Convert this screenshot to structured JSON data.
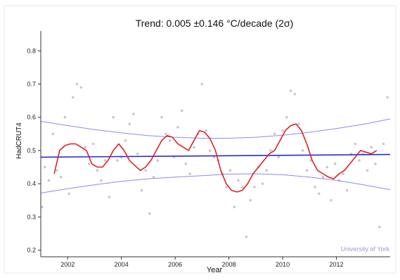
{
  "chart_data": {
    "type": "line",
    "title": "Trend: 0.005 ±0.146 °C/decade (2σ)",
    "xlabel": "Year",
    "ylabel": "HadCRUT4",
    "watermark": "University of York",
    "xlim": [
      2001.0,
      2014.0
    ],
    "ylim": [
      0.18,
      0.86
    ],
    "x_ticks": [
      2002,
      2004,
      2006,
      2008,
      2010,
      2012
    ],
    "y_ticks": [
      0.2,
      0.3,
      0.4,
      0.5,
      0.6,
      0.7,
      0.8
    ],
    "grid": false,
    "colors": {
      "smoothed": "#e02020",
      "trend": "#2a2ad6",
      "confidence": "#8a8af0",
      "monthly": "#c8c8c8",
      "axis": "#333333"
    },
    "series": [
      {
        "name": "",
        "style": "scatter",
        "x": [
          2001.05,
          2001.15,
          2001.3,
          2001.45,
          2001.6,
          2001.75,
          2001.9,
          2002.05,
          2002.2,
          2002.35,
          2002.5,
          2002.65,
          2002.8,
          2002.95,
          2003.1,
          2003.25,
          2003.4,
          2003.55,
          2003.7,
          2003.85,
          2004.0,
          2004.15,
          2004.3,
          2004.45,
          2004.6,
          2004.75,
          2004.9,
          2005.05,
          2005.2,
          2005.35,
          2005.5,
          2005.65,
          2005.8,
          2005.95,
          2006.1,
          2006.25,
          2006.4,
          2006.55,
          2006.7,
          2006.85,
          2007.0,
          2007.15,
          2007.3,
          2007.45,
          2007.6,
          2007.75,
          2007.9,
          2008.05,
          2008.2,
          2008.35,
          2008.5,
          2008.65,
          2008.8,
          2008.95,
          2009.1,
          2009.25,
          2009.4,
          2009.55,
          2009.7,
          2009.85,
          2010.0,
          2010.15,
          2010.3,
          2010.45,
          2010.6,
          2010.75,
          2010.9,
          2011.05,
          2011.2,
          2011.35,
          2011.5,
          2011.65,
          2011.8,
          2011.95,
          2012.1,
          2012.25,
          2012.4,
          2012.55,
          2012.7,
          2012.85,
          2013.0,
          2013.15,
          2013.3,
          2013.45,
          2013.6,
          2013.75,
          2013.9
        ],
        "values": [
          0.33,
          0.45,
          0.41,
          0.55,
          0.44,
          0.42,
          0.6,
          0.37,
          0.66,
          0.7,
          0.69,
          0.51,
          0.46,
          0.52,
          0.44,
          0.41,
          0.47,
          0.36,
          0.6,
          0.47,
          0.48,
          0.53,
          0.58,
          0.61,
          0.49,
          0.38,
          0.44,
          0.31,
          0.42,
          0.47,
          0.6,
          0.55,
          0.53,
          0.48,
          0.57,
          0.62,
          0.46,
          0.43,
          0.51,
          0.55,
          0.7,
          0.56,
          0.5,
          0.48,
          0.47,
          0.43,
          0.39,
          0.44,
          0.33,
          0.41,
          0.39,
          0.24,
          0.35,
          0.39,
          0.45,
          0.4,
          0.44,
          0.5,
          0.55,
          0.48,
          0.56,
          0.6,
          0.68,
          0.67,
          0.58,
          0.5,
          0.44,
          0.47,
          0.39,
          0.37,
          0.42,
          0.45,
          0.35,
          0.46,
          0.41,
          0.43,
          0.38,
          0.49,
          0.52,
          0.47,
          0.49,
          0.44,
          0.51,
          0.46,
          0.27,
          0.52,
          0.66
        ]
      },
      {
        "name": "",
        "style": "line",
        "x": [
          2001.5,
          2001.7,
          2001.9,
          2002.1,
          2002.3,
          2002.5,
          2002.7,
          2002.9,
          2003.1,
          2003.3,
          2003.5,
          2003.7,
          2003.9,
          2004.1,
          2004.3,
          2004.5,
          2004.7,
          2004.9,
          2005.1,
          2005.3,
          2005.5,
          2005.7,
          2005.9,
          2006.1,
          2006.3,
          2006.5,
          2006.7,
          2006.9,
          2007.1,
          2007.3,
          2007.5,
          2007.7,
          2007.9,
          2008.1,
          2008.3,
          2008.5,
          2008.7,
          2008.9,
          2009.1,
          2009.3,
          2009.5,
          2009.7,
          2009.9,
          2010.1,
          2010.3,
          2010.5,
          2010.7,
          2010.9,
          2011.1,
          2011.3,
          2011.5,
          2011.7,
          2011.9,
          2012.1,
          2012.3,
          2012.5,
          2012.7,
          2012.9,
          2013.1,
          2013.3,
          2013.5
        ],
        "values": [
          0.43,
          0.5,
          0.515,
          0.52,
          0.52,
          0.51,
          0.5,
          0.46,
          0.45,
          0.45,
          0.47,
          0.5,
          0.52,
          0.5,
          0.47,
          0.455,
          0.44,
          0.45,
          0.47,
          0.5,
          0.53,
          0.545,
          0.54,
          0.52,
          0.51,
          0.5,
          0.53,
          0.56,
          0.555,
          0.535,
          0.5,
          0.44,
          0.4,
          0.38,
          0.375,
          0.38,
          0.4,
          0.43,
          0.45,
          0.47,
          0.49,
          0.5,
          0.53,
          0.56,
          0.575,
          0.58,
          0.56,
          0.52,
          0.47,
          0.44,
          0.43,
          0.42,
          0.415,
          0.43,
          0.44,
          0.46,
          0.48,
          0.5,
          0.495,
          0.49,
          0.5
        ]
      },
      {
        "name": "",
        "style": "trend",
        "x": [
          2001.0,
          2014.0
        ],
        "values": [
          0.48,
          0.488
        ]
      },
      {
        "name": "",
        "style": "band-upper",
        "x": [
          2001.0,
          2002.0,
          2003.0,
          2004.0,
          2005.0,
          2006.0,
          2007.0,
          2008.0,
          2009.0,
          2010.0,
          2011.0,
          2012.0,
          2013.0,
          2014.0
        ],
        "values": [
          0.588,
          0.575,
          0.563,
          0.553,
          0.545,
          0.54,
          0.537,
          0.537,
          0.54,
          0.546,
          0.555,
          0.566,
          0.579,
          0.595
        ]
      },
      {
        "name": "",
        "style": "band-lower",
        "x": [
          2001.0,
          2002.0,
          2003.0,
          2004.0,
          2005.0,
          2006.0,
          2007.0,
          2008.0,
          2009.0,
          2010.0,
          2011.0,
          2012.0,
          2013.0,
          2014.0
        ],
        "values": [
          0.372,
          0.385,
          0.397,
          0.407,
          0.415,
          0.42,
          0.424,
          0.429,
          0.43,
          0.427,
          0.42,
          0.41,
          0.397,
          0.382
        ]
      }
    ]
  }
}
